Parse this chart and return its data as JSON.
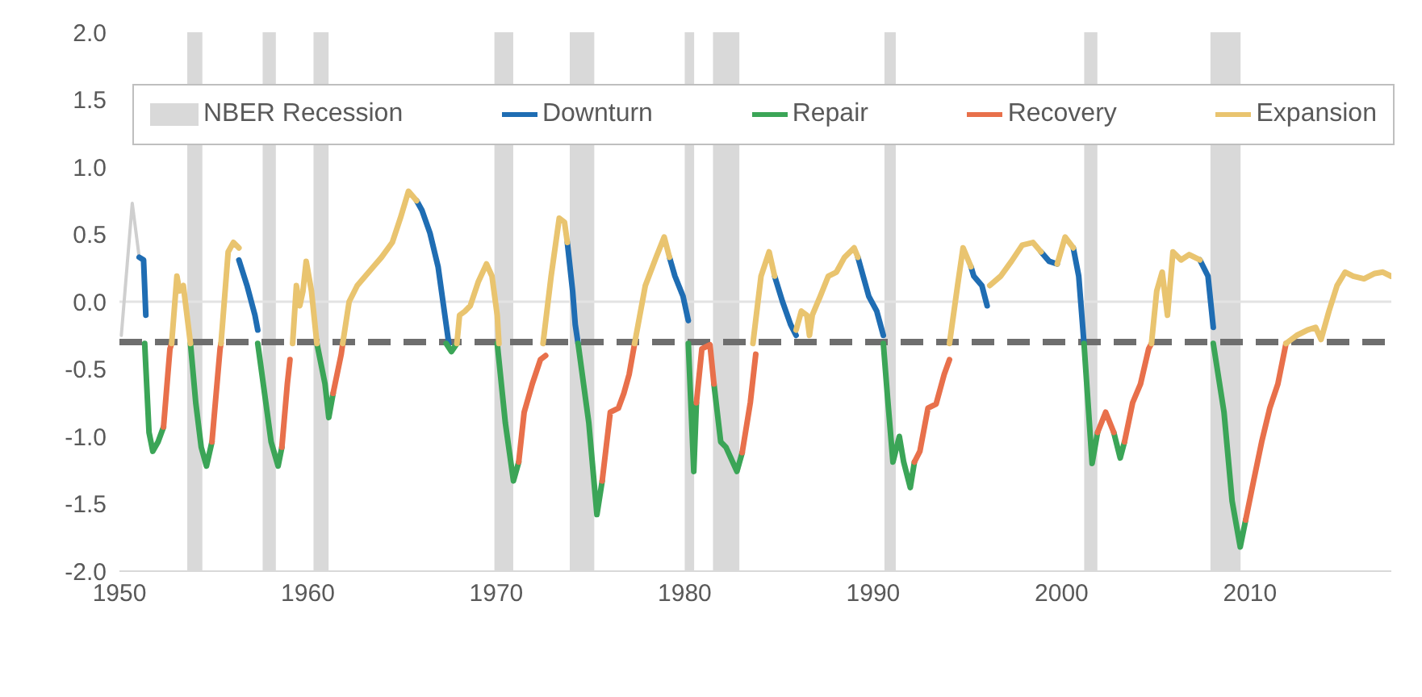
{
  "chart_data": {
    "type": "line",
    "xlim": [
      1950,
      2017.5
    ],
    "xticks": [
      1950,
      1960,
      1970,
      1980,
      1990,
      2000,
      2010
    ],
    "ylim": [
      -2,
      2
    ],
    "yticks": [
      {
        "value": -2,
        "label": "-2.0"
      },
      {
        "value": -1.5,
        "label": "-1.5"
      },
      {
        "value": -1,
        "label": "-1.0"
      },
      {
        "value": -0.5,
        "label": "-0.5"
      },
      {
        "value": 0,
        "label": "0.0"
      },
      {
        "value": 0.5,
        "label": "0.5"
      },
      {
        "value": 1,
        "label": "1.0"
      },
      {
        "value": 1.5,
        "label": "1.5"
      },
      {
        "value": 2,
        "label": "2.0"
      }
    ],
    "grid": false,
    "legend": "top",
    "marker": "none",
    "line_style": "solid",
    "bands": [
      {
        "axis": "x",
        "from": 1953.6,
        "to": 1954.4,
        "label": "NBER Recession",
        "color": "#d9d9d9"
      },
      {
        "axis": "x",
        "from": 1957.6,
        "to": 1958.3,
        "color": "#d9d9d9"
      },
      {
        "axis": "x",
        "from": 1960.3,
        "to": 1961.1,
        "color": "#d9d9d9"
      },
      {
        "axis": "x",
        "from": 1969.9,
        "to": 1970.9,
        "color": "#d9d9d9"
      },
      {
        "axis": "x",
        "from": 1973.9,
        "to": 1975.2,
        "color": "#d9d9d9"
      },
      {
        "axis": "x",
        "from": 1980.0,
        "to": 1980.5,
        "color": "#d9d9d9"
      },
      {
        "axis": "x",
        "from": 1981.5,
        "to": 1982.9,
        "color": "#d9d9d9"
      },
      {
        "axis": "x",
        "from": 1990.6,
        "to": 1991.2,
        "color": "#d9d9d9"
      },
      {
        "axis": "x",
        "from": 2001.2,
        "to": 2001.9,
        "color": "#d9d9d9"
      },
      {
        "axis": "x",
        "from": 2007.9,
        "to": 2009.5,
        "color": "#d9d9d9"
      }
    ],
    "ref_lines": [
      {
        "axis": "y",
        "value": 0,
        "color": "#e3e3e3",
        "line_style": "solid"
      },
      {
        "axis": "y",
        "value": -0.3,
        "color": "#6e6e6e",
        "line_style": "dashed"
      }
    ],
    "series": [
      {
        "color": "#cfcfcf",
        "x": [
          1950.1,
          1950.68,
          1951.05
        ],
        "values": [
          -0.25,
          0.73,
          0.33
        ]
      },
      {
        "name": "Downturn",
        "color": "#1f6db3",
        "x": [
          1951.05,
          1951.28,
          1951.4,
          1953,
          1956.34,
          1956.77,
          1957.19,
          1957.34,
          1960,
          1965.77,
          1966.05,
          1966.48,
          1966.91,
          1967.34,
          1967.48,
          1970,
          1973.77,
          1974.05,
          1974.19,
          1974.34,
          1976,
          1979.19,
          1979.48,
          1979.91,
          1980.19,
          1982,
          1984.77,
          1985.19,
          1985.62,
          1985.91,
          1987,
          1989.19,
          1989.77,
          1990.19,
          1990.54,
          1993,
          1995.19,
          1995.34,
          1995.77,
          1996.05,
          1997,
          1998.91,
          1999.34,
          1999.77,
          2000,
          2000.62,
          2000.91,
          2001.19,
          2004,
          2007.34,
          2007.77,
          2008.05
        ],
        "values": [
          0.33,
          0.31,
          -0.1,
          null,
          0.31,
          0.12,
          -0.1,
          -0.21,
          null,
          0.75,
          0.68,
          0.51,
          0.26,
          -0.17,
          -0.31,
          null,
          0.44,
          0.08,
          -0.17,
          -0.31,
          null,
          0.33,
          0.19,
          0.04,
          -0.14,
          null,
          0.19,
          0.0,
          -0.17,
          -0.25,
          null,
          0.33,
          0.04,
          -0.07,
          -0.25,
          null,
          0.26,
          0.19,
          0.12,
          -0.03,
          null,
          0.37,
          0.3,
          0.28,
          null,
          0.4,
          0.19,
          -0.31,
          null,
          0.31,
          0.19,
          -0.19
        ]
      },
      {
        "name": "Repair",
        "color": "#3ba557",
        "x": [
          1951.34,
          1951.57,
          1951.77,
          1952.05,
          1952.34,
          1953,
          1953.77,
          1954.05,
          1954.34,
          1954.62,
          1954.91,
          1956,
          1957.34,
          1957.77,
          1958.05,
          1958.42,
          1958.62,
          1960,
          1960.48,
          1960.91,
          1961.11,
          1961.34,
          1964,
          1967.34,
          1967.62,
          1967.91,
          1969,
          1970.05,
          1970.48,
          1970.91,
          1971.19,
          1973,
          1974.34,
          1974.91,
          1975.34,
          1975.62,
          1978,
          1980.19,
          1980.48,
          1980.62,
          1981,
          1981.55,
          1981.91,
          1982.19,
          1982.77,
          1983.05,
          1987,
          1990.54,
          1990.77,
          1991.05,
          1991.39,
          1991.62,
          1991.97,
          1992.19,
          1996,
          2001.19,
          2001.62,
          2001.91,
          2002.5,
          2002.77,
          2003.11,
          2003.34,
          2006,
          2008.05,
          2008.62,
          2009.05,
          2009.48,
          2009.77
        ],
        "values": [
          -0.31,
          -0.97,
          -1.11,
          -1.04,
          -0.93,
          null,
          -0.31,
          -0.75,
          -1.08,
          -1.22,
          -1.04,
          null,
          -0.31,
          -0.75,
          -1.04,
          -1.22,
          -1.08,
          null,
          -0.31,
          -0.61,
          -0.86,
          -0.68,
          null,
          -0.31,
          -0.37,
          -0.31,
          null,
          -0.31,
          -0.9,
          -1.33,
          -1.19,
          null,
          -0.31,
          -0.9,
          -1.58,
          -1.33,
          null,
          -0.31,
          -1.26,
          -0.75,
          null,
          -0.61,
          -1.04,
          -1.08,
          -1.26,
          -1.12,
          null,
          -0.31,
          -0.72,
          -1.19,
          -1.0,
          -1.19,
          -1.38,
          -1.19,
          null,
          -0.31,
          -1.2,
          -0.97,
          null,
          -0.97,
          -1.16,
          -1.04,
          null,
          -0.31,
          -0.82,
          -1.48,
          -1.82,
          -1.62
        ]
      },
      {
        "name": "Recovery",
        "color": "#e8704b",
        "x": [
          1952.34,
          1952.68,
          1952.77,
          1953.5,
          1954.91,
          1955.34,
          1955.39,
          1957,
          1958.62,
          1958.91,
          1959.05,
          1960,
          1961.34,
          1961.77,
          1961.85,
          1965,
          1971.19,
          1971.48,
          1971.91,
          1972.34,
          1972.62,
          1973,
          1975.62,
          1976.05,
          1976.48,
          1976.77,
          1977.05,
          1977.34,
          1978,
          1980.62,
          1980.91,
          1981.34,
          1981.55,
          1982.5,
          1983.05,
          1983.48,
          1983.77,
          1990,
          1992.19,
          1992.48,
          1992.91,
          1993.34,
          1993.77,
          1994.05,
          1998,
          2001.91,
          2002.34,
          2002.77,
          2003.2,
          2003.34,
          2003.77,
          2004.19,
          2004.62,
          2004.77,
          2006,
          2009.77,
          2010.19,
          2010.62,
          2011.05,
          2011.48,
          2011.91
        ],
        "values": [
          -0.93,
          -0.35,
          -0.31,
          null,
          -1.04,
          -0.35,
          -0.31,
          null,
          -1.08,
          -0.61,
          -0.43,
          null,
          -0.68,
          -0.39,
          -0.31,
          null,
          -1.19,
          -0.82,
          -0.61,
          -0.43,
          -0.4,
          null,
          -1.33,
          -0.82,
          -0.79,
          -0.68,
          -0.54,
          -0.31,
          null,
          -0.75,
          -0.35,
          -0.32,
          -0.61,
          null,
          -1.12,
          -0.75,
          -0.39,
          null,
          -1.19,
          -1.11,
          -0.79,
          -0.76,
          -0.54,
          -0.43,
          null,
          -0.97,
          -0.82,
          -0.97,
          null,
          -1.04,
          -0.75,
          -0.61,
          -0.35,
          -0.31,
          null,
          -1.62,
          -1.33,
          -1.04,
          -0.79,
          -0.61,
          -0.31
        ]
      },
      {
        "name": "Expansion",
        "color": "#e9c46f",
        "x": [
          1952.77,
          1953.05,
          1953.19,
          1953.39,
          1953.77,
          1954.5,
          1955.39,
          1955.77,
          1956.05,
          1956.34,
          1958,
          1959.19,
          1959.39,
          1959.57,
          1959.74,
          1959.91,
          1960.19,
          1960.48,
          1961,
          1961.85,
          1962.19,
          1962.62,
          1963.05,
          1963.48,
          1963.91,
          1964.48,
          1964.91,
          1965.34,
          1965.77,
          1967,
          1967.91,
          1968.05,
          1968.34,
          1968.62,
          1969.05,
          1969.48,
          1969.77,
          1970.05,
          1970.14,
          1971,
          1972.48,
          1972.91,
          1973.34,
          1973.62,
          1973.77,
          1975,
          1977.34,
          1977.91,
          1978.48,
          1978.91,
          1979.19,
          1982,
          1983.62,
          1984.05,
          1984.48,
          1984.77,
          1985.5,
          1985.91,
          1986.19,
          1986.48,
          1986.62,
          1986.77,
          1987.19,
          1987.62,
          1988.05,
          1988.48,
          1988.99,
          1989.19,
          1992,
          1994.05,
          1994.48,
          1994.77,
          1995.19,
          1996.1,
          1996.19,
          1996.77,
          1997.34,
          1997.91,
          1998.48,
          1998.91,
          1999.5,
          1999.77,
          2000.19,
          2000.62,
          2003,
          2004.77,
          2005.05,
          2005.34,
          2005.62,
          2005.91,
          2006.34,
          2006.77,
          2007.34,
          2010,
          2011.91,
          2012.48,
          2013.05,
          2013.48,
          2013.77,
          2014.19,
          2014.62,
          2015.05,
          2015.48,
          2016.05,
          2016.62,
          2017.05,
          2017.48
        ],
        "values": [
          -0.31,
          0.19,
          0.08,
          0.12,
          -0.31,
          null,
          -0.31,
          0.37,
          0.44,
          0.4,
          null,
          -0.31,
          0.12,
          -0.03,
          0.08,
          0.3,
          0.08,
          -0.31,
          null,
          -0.31,
          0.0,
          0.12,
          0.19,
          0.26,
          0.33,
          0.44,
          0.62,
          0.82,
          0.75,
          null,
          -0.31,
          -0.1,
          -0.07,
          -0.03,
          0.15,
          0.28,
          0.19,
          -0.1,
          -0.31,
          null,
          -0.31,
          0.19,
          0.62,
          0.59,
          0.44,
          null,
          -0.31,
          0.12,
          0.33,
          0.48,
          0.33,
          null,
          -0.31,
          0.19,
          0.37,
          0.19,
          null,
          -0.21,
          -0.07,
          -0.1,
          -0.25,
          -0.1,
          0.04,
          0.19,
          0.22,
          0.33,
          0.4,
          0.33,
          null,
          -0.31,
          0.12,
          0.4,
          0.26,
          null,
          0.12,
          0.19,
          0.3,
          0.42,
          0.44,
          0.37,
          null,
          0.28,
          0.48,
          0.4,
          null,
          -0.31,
          0.08,
          0.22,
          -0.1,
          0.37,
          0.31,
          0.35,
          0.31,
          null,
          -0.31,
          -0.25,
          -0.21,
          -0.19,
          -0.28,
          -0.07,
          0.12,
          0.22,
          0.19,
          0.17,
          0.21,
          0.22,
          0.19
        ]
      }
    ]
  }
}
